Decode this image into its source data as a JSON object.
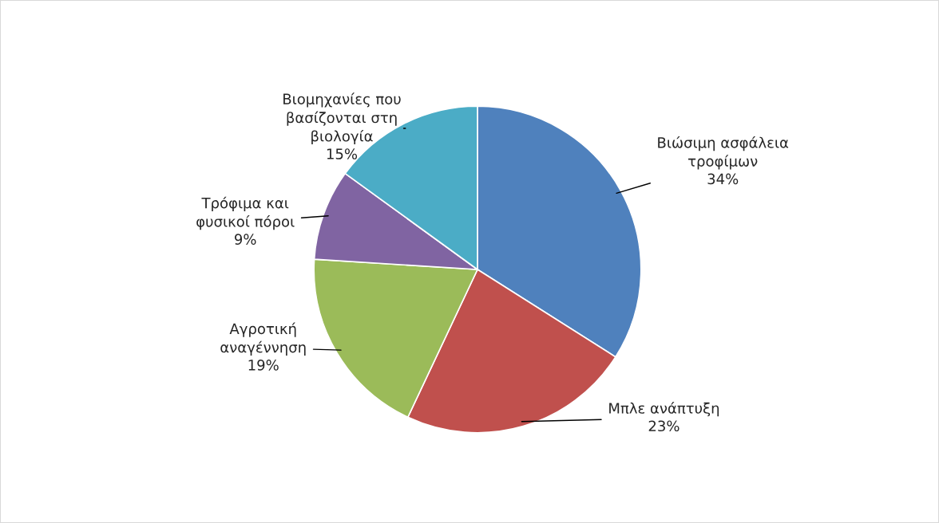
{
  "chart_data": {
    "type": "pie",
    "categories": [
      "Βιώσιμη ασφάλεια τροφίμων",
      "Μπλε ανάπτυξη",
      "Αγροτική αναγέννηση",
      "Τρόφιμα και φυσικοί πόροι",
      "Βιομηχανίες που βασίζονται στη βιολογία"
    ],
    "values": [
      34,
      23,
      19,
      9,
      15
    ],
    "value_labels": [
      "34%",
      "23%",
      "19%",
      "9%",
      "15%"
    ],
    "colors": [
      "#4f81bd",
      "#c0504d",
      "#9bbb59",
      "#8064a2",
      "#4bacc6"
    ]
  }
}
